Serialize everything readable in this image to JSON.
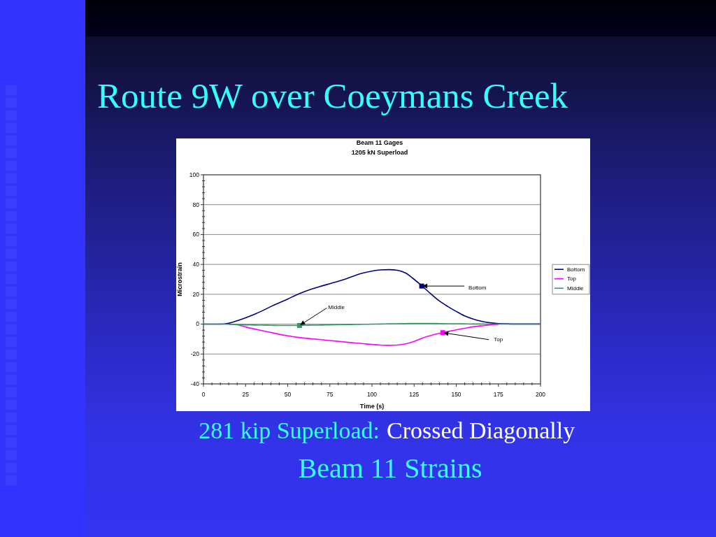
{
  "chart_data": {
    "type": "line",
    "title": "Beam 11 Gages",
    "subtitle": "1205 kN Superload",
    "xlabel": "Time (s)",
    "ylabel": "Microstrain",
    "x": [
      0,
      5,
      10,
      15,
      20,
      25,
      30,
      35,
      40,
      45,
      50,
      55,
      60,
      65,
      70,
      75,
      80,
      85,
      90,
      95,
      100,
      105,
      110,
      115,
      120,
      125,
      130,
      135,
      140,
      145,
      150,
      155,
      160,
      165,
      170,
      175,
      180,
      185,
      190,
      195,
      200
    ],
    "xlim": [
      0,
      200
    ],
    "xticks": [
      0,
      {
        "value": 5,
        "label": null
      },
      {
        "value": 10,
        "label": null
      },
      {
        "value": 15,
        "label": null
      },
      {
        "value": 20,
        "label": null
      },
      25,
      {
        "value": 30,
        "label": null
      },
      {
        "value": 35,
        "label": null
      },
      {
        "value": 40,
        "label": null
      },
      {
        "value": 45,
        "label": null
      },
      50,
      {
        "value": 55,
        "label": null
      },
      {
        "value": 60,
        "label": null
      },
      {
        "value": 65,
        "label": null
      },
      {
        "value": 70,
        "label": null
      },
      75,
      {
        "value": 80,
        "label": null
      },
      {
        "value": 85,
        "label": null
      },
      {
        "value": 90,
        "label": null
      },
      {
        "value": 95,
        "label": null
      },
      100,
      {
        "value": 105,
        "label": null
      },
      {
        "value": 110,
        "label": null
      },
      {
        "value": 115,
        "label": null
      },
      {
        "value": 120,
        "label": null
      },
      125,
      {
        "value": 130,
        "label": null
      },
      {
        "value": 135,
        "label": null
      },
      {
        "value": 140,
        "label": null
      },
      {
        "value": 145,
        "label": null
      },
      150,
      {
        "value": 155,
        "label": null
      },
      {
        "value": 160,
        "label": null
      },
      {
        "value": 165,
        "label": null
      },
      {
        "value": 170,
        "label": null
      },
      175,
      {
        "value": 180,
        "label": null
      },
      {
        "value": 185,
        "label": null
      },
      {
        "value": 190,
        "label": null
      },
      {
        "value": 195,
        "label": null
      },
      200
    ],
    "ylim": [
      -40,
      100
    ],
    "yticks": [
      -40,
      {
        "value": -36,
        "label": null
      },
      {
        "value": -32,
        "label": null
      },
      {
        "value": -28,
        "label": null
      },
      {
        "value": -24,
        "label": null
      },
      -20,
      {
        "value": -16,
        "label": null
      },
      {
        "value": -12,
        "label": null
      },
      {
        "value": -8,
        "label": null
      },
      {
        "value": -4,
        "label": null
      },
      0,
      {
        "value": 4,
        "label": null
      },
      {
        "value": 8,
        "label": null
      },
      {
        "value": 12,
        "label": null
      },
      {
        "value": 16,
        "label": null
      },
      20,
      {
        "value": 24,
        "label": null
      },
      {
        "value": 28,
        "label": null
      },
      {
        "value": 32,
        "label": null
      },
      {
        "value": 36,
        "label": null
      },
      40,
      {
        "value": 44,
        "label": null
      },
      {
        "value": 48,
        "label": null
      },
      {
        "value": 52,
        "label": null
      },
      {
        "value": 56,
        "label": null
      },
      60,
      {
        "value": 64,
        "label": null
      },
      {
        "value": 68,
        "label": null
      },
      {
        "value": 72,
        "label": null
      },
      {
        "value": 76,
        "label": null
      },
      80,
      {
        "value": 84,
        "label": null
      },
      {
        "value": 88,
        "label": null
      },
      {
        "value": 92,
        "label": null
      },
      {
        "value": 96,
        "label": null
      },
      100
    ],
    "grid": "y",
    "legend": "right",
    "series": [
      {
        "name": "Bottom",
        "color": "#000080",
        "values": [
          0,
          0,
          0,
          0.6,
          2.3,
          4.3,
          6.5,
          9,
          11.8,
          14.3,
          16.8,
          19.5,
          21.8,
          23.8,
          25.5,
          27.1,
          28.7,
          30.5,
          32.6,
          34.3,
          35.5,
          36.3,
          36.5,
          36.1,
          34.2,
          30,
          25.3,
          20.2,
          15.5,
          11.8,
          8.5,
          5.5,
          3.4,
          1.9,
          0.9,
          0.4,
          0.2,
          0.1,
          0.1,
          0.1,
          0.1
        ]
      },
      {
        "name": "Top",
        "color": "#ff00ff",
        "values": [
          null,
          null,
          null,
          0,
          -0.4,
          -1.9,
          -3.2,
          -4.4,
          -5.6,
          -6.8,
          -7.8,
          -8.7,
          -9.4,
          -9.9,
          -10.4,
          -11,
          -11.5,
          -12.1,
          -12.6,
          -13.1,
          -13.6,
          -14,
          -14.2,
          -14,
          -13.2,
          -11.6,
          -9.3,
          -7.6,
          -6.2,
          -5,
          -3.8,
          -2.8,
          -1.8,
          -1.1,
          -0.5,
          -0.2,
          null,
          null,
          null,
          null,
          null
        ]
      },
      {
        "name": "Middle",
        "color": "#339966",
        "values": [
          0,
          0,
          0,
          -0.1,
          -0.3,
          -0.5,
          -0.6,
          -0.7,
          -0.8,
          -0.9,
          -0.9,
          -0.9,
          -0.8,
          -0.7,
          -0.6,
          -0.5,
          -0.4,
          -0.3,
          -0.2,
          -0.1,
          0,
          0.1,
          0.2,
          0.3,
          0.4,
          0.5,
          0.5,
          0.5,
          0.4,
          0.3,
          0.3,
          0.2,
          0.1,
          0.1,
          0,
          0,
          0,
          0,
          0,
          0,
          0
        ]
      },
      {
        "type": "scatter",
        "color": "#000080",
        "marker": "square",
        "x": [
          129.5
        ],
        "values": [
          25.5
        ]
      },
      {
        "type": "scatter",
        "color": "#ff00ff",
        "marker": "square",
        "x": [
          142
        ],
        "values": [
          -5.7
        ]
      },
      {
        "type": "scatter",
        "color": "#339966",
        "marker": "square",
        "x": [
          57
        ],
        "values": [
          -0.9
        ]
      }
    ],
    "annotations": [
      "Route 9W over Coeymans Creek",
      "281 kip Superload:",
      "Crossed Diagonally",
      "Beam 11 Strains",
      {
        "text": "Bottom",
        "x": 129.5,
        "y": 25.5
      },
      {
        "text": "Top",
        "x": 142,
        "y": -5.7
      },
      {
        "text": "Middle",
        "x": 57,
        "y": -0.9
      }
    ]
  }
}
